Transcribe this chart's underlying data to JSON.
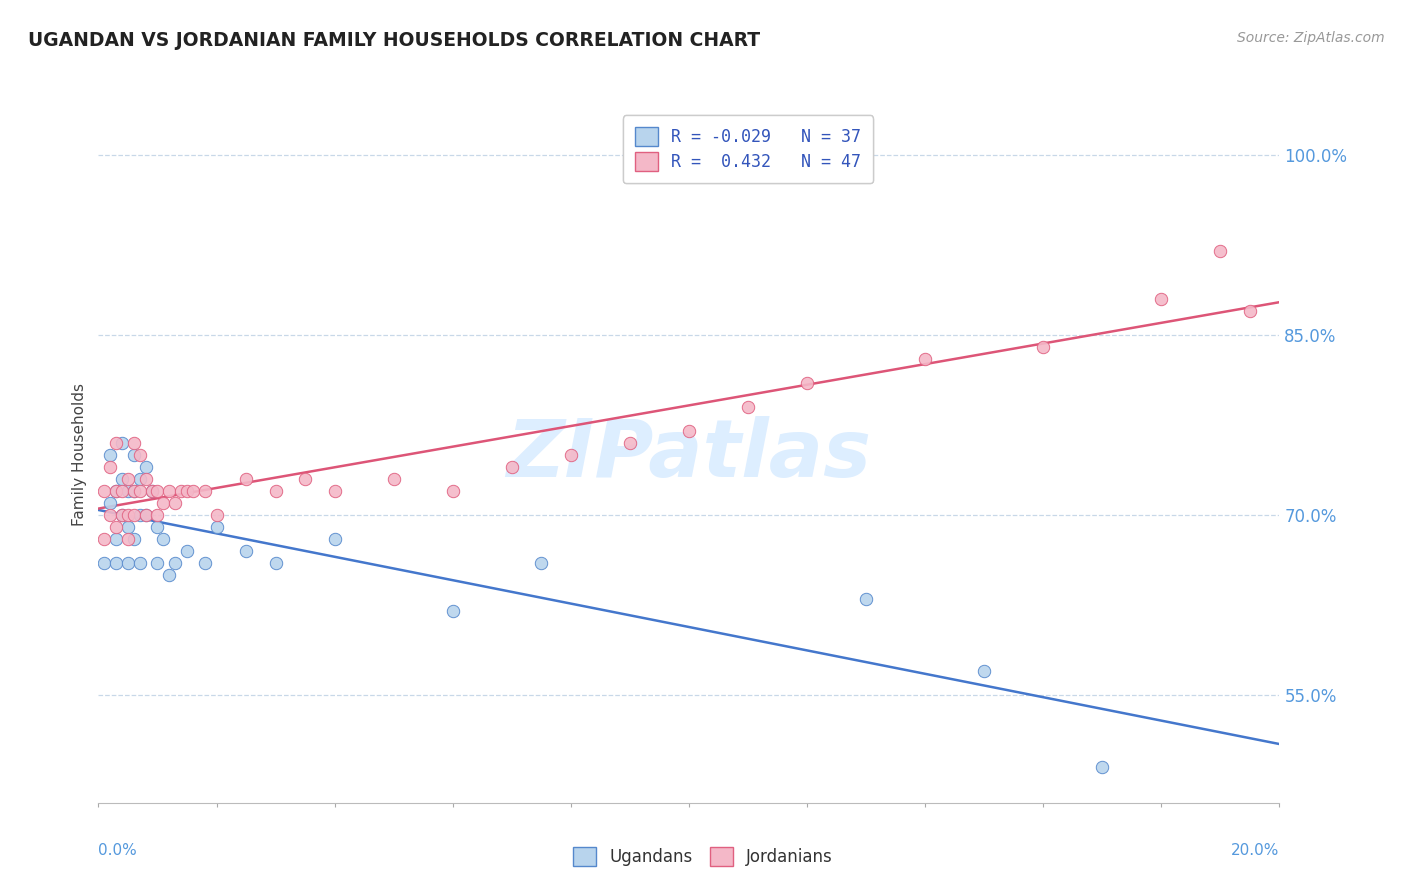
{
  "title": "UGANDAN VS JORDANIAN FAMILY HOUSEHOLDS CORRELATION CHART",
  "source": "Source: ZipAtlas.com",
  "ylabel": "Family Households",
  "xmin": 0.0,
  "xmax": 0.2,
  "ymin": 0.46,
  "ymax": 1.04,
  "ytick_positions": [
    0.55,
    0.7,
    0.85,
    1.0
  ],
  "ytick_labels": [
    "55.0%",
    "70.0%",
    "85.0%",
    "100.0%"
  ],
  "ugandan_fill": "#b8d4ed",
  "jordanian_fill": "#f4b8c8",
  "ugandan_edge": "#5588cc",
  "jordanian_edge": "#e06080",
  "ugandan_line": "#4477cc",
  "jordanian_line": "#dd5577",
  "watermark_color": "#ddeeff",
  "legend_r1_label": "R = -0.029   N = 37",
  "legend_r2_label": "R =  0.432   N = 47",
  "ugandan_x": [
    0.001,
    0.002,
    0.002,
    0.003,
    0.003,
    0.003,
    0.004,
    0.004,
    0.004,
    0.005,
    0.005,
    0.005,
    0.006,
    0.006,
    0.006,
    0.007,
    0.007,
    0.007,
    0.008,
    0.008,
    0.009,
    0.01,
    0.01,
    0.011,
    0.012,
    0.013,
    0.015,
    0.018,
    0.02,
    0.025,
    0.03,
    0.04,
    0.06,
    0.075,
    0.13,
    0.15,
    0.17
  ],
  "ugandan_y": [
    0.66,
    0.71,
    0.75,
    0.72,
    0.68,
    0.66,
    0.73,
    0.7,
    0.76,
    0.72,
    0.69,
    0.66,
    0.75,
    0.72,
    0.68,
    0.73,
    0.7,
    0.66,
    0.74,
    0.7,
    0.72,
    0.69,
    0.66,
    0.68,
    0.65,
    0.66,
    0.67,
    0.66,
    0.69,
    0.67,
    0.66,
    0.68,
    0.62,
    0.66,
    0.63,
    0.57,
    0.49
  ],
  "jordanian_x": [
    0.001,
    0.001,
    0.002,
    0.002,
    0.003,
    0.003,
    0.003,
    0.004,
    0.004,
    0.005,
    0.005,
    0.005,
    0.006,
    0.006,
    0.006,
    0.007,
    0.007,
    0.008,
    0.008,
    0.009,
    0.01,
    0.01,
    0.011,
    0.012,
    0.013,
    0.014,
    0.015,
    0.016,
    0.018,
    0.02,
    0.025,
    0.03,
    0.035,
    0.04,
    0.05,
    0.06,
    0.07,
    0.08,
    0.09,
    0.1,
    0.11,
    0.12,
    0.14,
    0.16,
    0.18,
    0.19,
    0.195
  ],
  "jordanian_y": [
    0.68,
    0.72,
    0.7,
    0.74,
    0.72,
    0.69,
    0.76,
    0.7,
    0.72,
    0.73,
    0.7,
    0.68,
    0.76,
    0.72,
    0.7,
    0.75,
    0.72,
    0.73,
    0.7,
    0.72,
    0.72,
    0.7,
    0.71,
    0.72,
    0.71,
    0.72,
    0.72,
    0.72,
    0.72,
    0.7,
    0.73,
    0.72,
    0.73,
    0.72,
    0.73,
    0.72,
    0.74,
    0.75,
    0.76,
    0.77,
    0.79,
    0.81,
    0.83,
    0.84,
    0.88,
    0.92,
    0.87
  ]
}
